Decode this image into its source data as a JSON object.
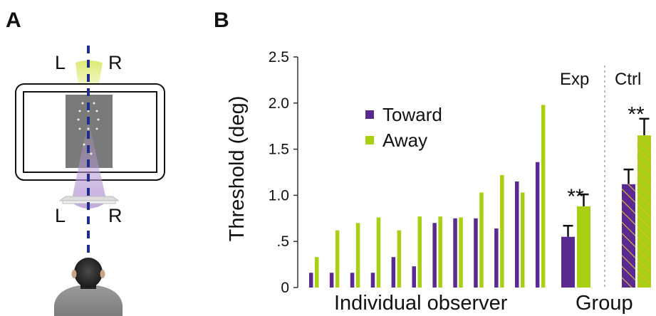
{
  "panels": {
    "a": "A",
    "b": "B"
  },
  "schematic": {
    "top_left": "L",
    "top_right": "R",
    "bottom_left": "L",
    "bottom_right": "R"
  },
  "colors": {
    "toward": "#5b2a90",
    "away": "#a8cf12",
    "axis": "#333333",
    "divider": "#c9b7a6"
  },
  "chart_data": {
    "type": "bar",
    "ylabel": "Threshold (deg)",
    "xlabel_individual": "Individual observer",
    "xlabel_group": "Group",
    "ylim": [
      0,
      2.5
    ],
    "yticks": [
      "0",
      ".5",
      "1.0",
      "1.5",
      "2.0",
      "2.5"
    ],
    "individual": {
      "toward": [
        0.16,
        0.16,
        0.16,
        0.16,
        0.33,
        0.23,
        0.7,
        0.75,
        0.75,
        0.64,
        1.15,
        1.36
      ],
      "away": [
        0.33,
        0.62,
        0.7,
        0.76,
        0.62,
        0.77,
        0.77,
        0.76,
        1.03,
        1.22,
        1.03,
        1.98
      ]
    },
    "group": {
      "labels": [
        "Exp",
        "Ctrl"
      ],
      "toward": [
        0.55,
        1.12
      ],
      "toward_err": [
        0.12,
        0.16
      ],
      "away": [
        0.88,
        1.65
      ],
      "away_err": [
        0.13,
        0.18
      ],
      "significance": [
        "**",
        "**"
      ],
      "ctrl_hatched": true
    },
    "legend": [
      {
        "name": "Toward",
        "color": "#5b2a90"
      },
      {
        "name": "Away",
        "color": "#a8cf12"
      }
    ]
  }
}
